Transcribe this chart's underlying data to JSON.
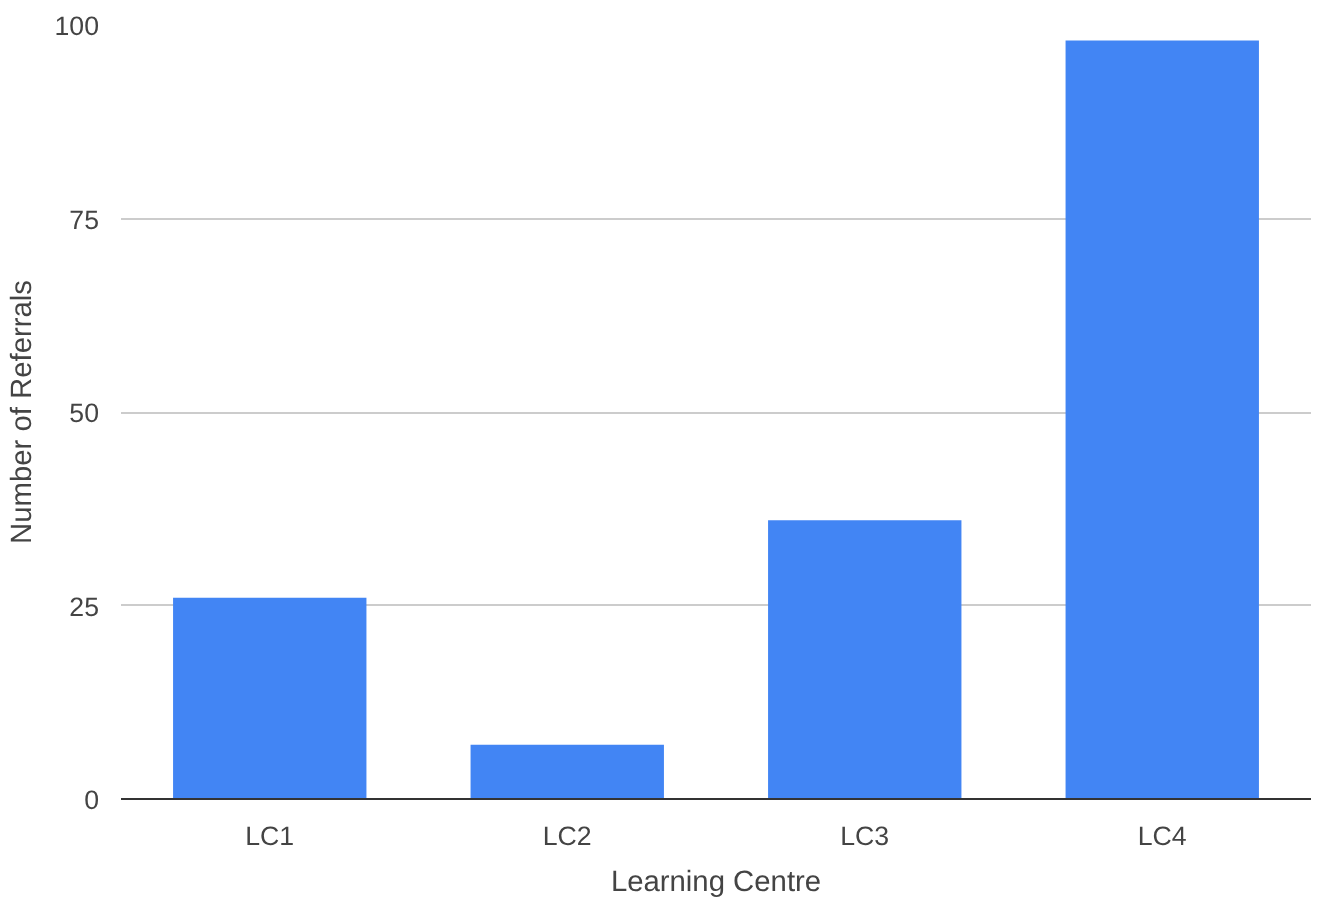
{
  "chart_data": {
    "type": "bar",
    "xlabel": "Learning Centre",
    "ylabel": "Number of Referrals",
    "categories": [
      "LC1",
      "LC2",
      "LC3",
      "LC4"
    ],
    "values": [
      26,
      7,
      36,
      98
    ],
    "color": "#4285f4",
    "ylim": [
      0,
      100
    ],
    "yticks": [
      0,
      25,
      50,
      75,
      100
    ],
    "grid": "y"
  }
}
